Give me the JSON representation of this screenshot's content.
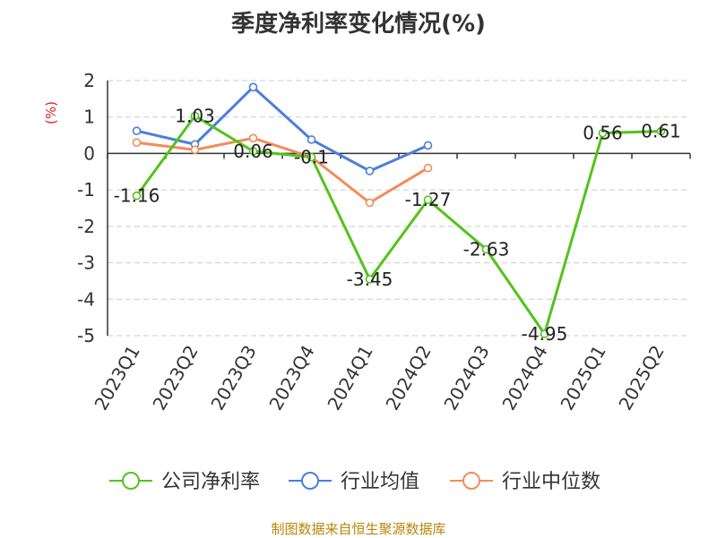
{
  "chart_data": {
    "type": "line",
    "title": "季度净利率变化情况(%)",
    "ylabel": "(%)",
    "xlabel": "",
    "ylim": [
      -5,
      2
    ],
    "yticks": [
      2,
      1,
      0,
      -1,
      -2,
      -3,
      -4,
      -5
    ],
    "grid": true,
    "legend_position": "bottom",
    "categories": [
      "2023Q1",
      "2023Q2",
      "2023Q3",
      "2023Q4",
      "2024Q1",
      "2024Q2",
      "2024Q3",
      "2024Q4",
      "2025Q1",
      "2025Q2"
    ],
    "series": [
      {
        "name": "公司净利率",
        "color": "#52c41a",
        "values": [
          -1.16,
          1.03,
          0.06,
          -0.1,
          -3.45,
          -1.27,
          -2.63,
          -4.95,
          0.56,
          0.61
        ],
        "labels": [
          "-1.16",
          "1.03",
          "0.06",
          "-0.1",
          "-3.45",
          "-1.27",
          "-2.63",
          "-4.95",
          "0.56",
          "0.61"
        ]
      },
      {
        "name": "行业均值",
        "color": "#4a7fdc",
        "values": [
          0.62,
          0.25,
          1.82,
          0.38,
          -0.48,
          0.22,
          null,
          null,
          null,
          null
        ]
      },
      {
        "name": "行业中位数",
        "color": "#f28c5a",
        "values": [
          0.3,
          0.1,
          0.42,
          -0.1,
          -1.35,
          -0.4,
          null,
          null,
          null,
          null
        ]
      }
    ]
  },
  "source_note": "制图数据来自恒生聚源数据库",
  "colors": {
    "title": "#333333",
    "ylabel": "#e02020",
    "grid": "#cccccc",
    "source_note": "#b8860b"
  }
}
